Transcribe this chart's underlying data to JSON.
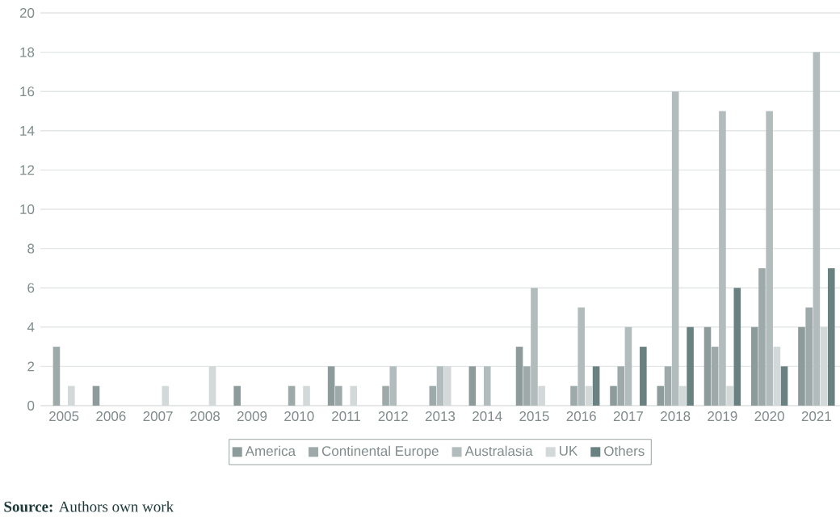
{
  "chart_data": {
    "type": "bar",
    "categories": [
      "2005",
      "2006",
      "2007",
      "2008",
      "2009",
      "2010",
      "2011",
      "2012",
      "2013",
      "2014",
      "2015",
      "2016",
      "2017",
      "2018",
      "2019",
      "2020",
      "2021"
    ],
    "series": [
      {
        "name": "America",
        "color": "#8e9b9b",
        "values": [
          0,
          1,
          0,
          0,
          1,
          0,
          2,
          0,
          0,
          2,
          3,
          0,
          1,
          1,
          4,
          4,
          4
        ]
      },
      {
        "name": "Continental Europe",
        "color": "#9ea9a9",
        "values": [
          3,
          0,
          0,
          0,
          0,
          1,
          1,
          1,
          1,
          0,
          2,
          1,
          2,
          2,
          3,
          7,
          5
        ]
      },
      {
        "name": "Australasia",
        "color": "#b3bcbc",
        "values": [
          0,
          0,
          0,
          0,
          0,
          0,
          0,
          2,
          2,
          2,
          6,
          5,
          4,
          16,
          15,
          15,
          18
        ]
      },
      {
        "name": "UK",
        "color": "#d3d8d8",
        "values": [
          1,
          0,
          1,
          2,
          0,
          1,
          1,
          0,
          2,
          0,
          1,
          1,
          0,
          1,
          1,
          3,
          4
        ]
      },
      {
        "name": "Others",
        "color": "#6a8181",
        "values": [
          0,
          0,
          0,
          0,
          0,
          0,
          0,
          0,
          0,
          0,
          0,
          2,
          3,
          4,
          6,
          2,
          7
        ]
      }
    ],
    "ylim": [
      0,
      20
    ],
    "yticks": [
      0,
      2,
      4,
      6,
      8,
      10,
      12,
      14,
      16,
      18,
      20
    ],
    "grid": "y",
    "legend": "bottom",
    "annotations": [
      "**Source:** Authors own work"
    ]
  }
}
